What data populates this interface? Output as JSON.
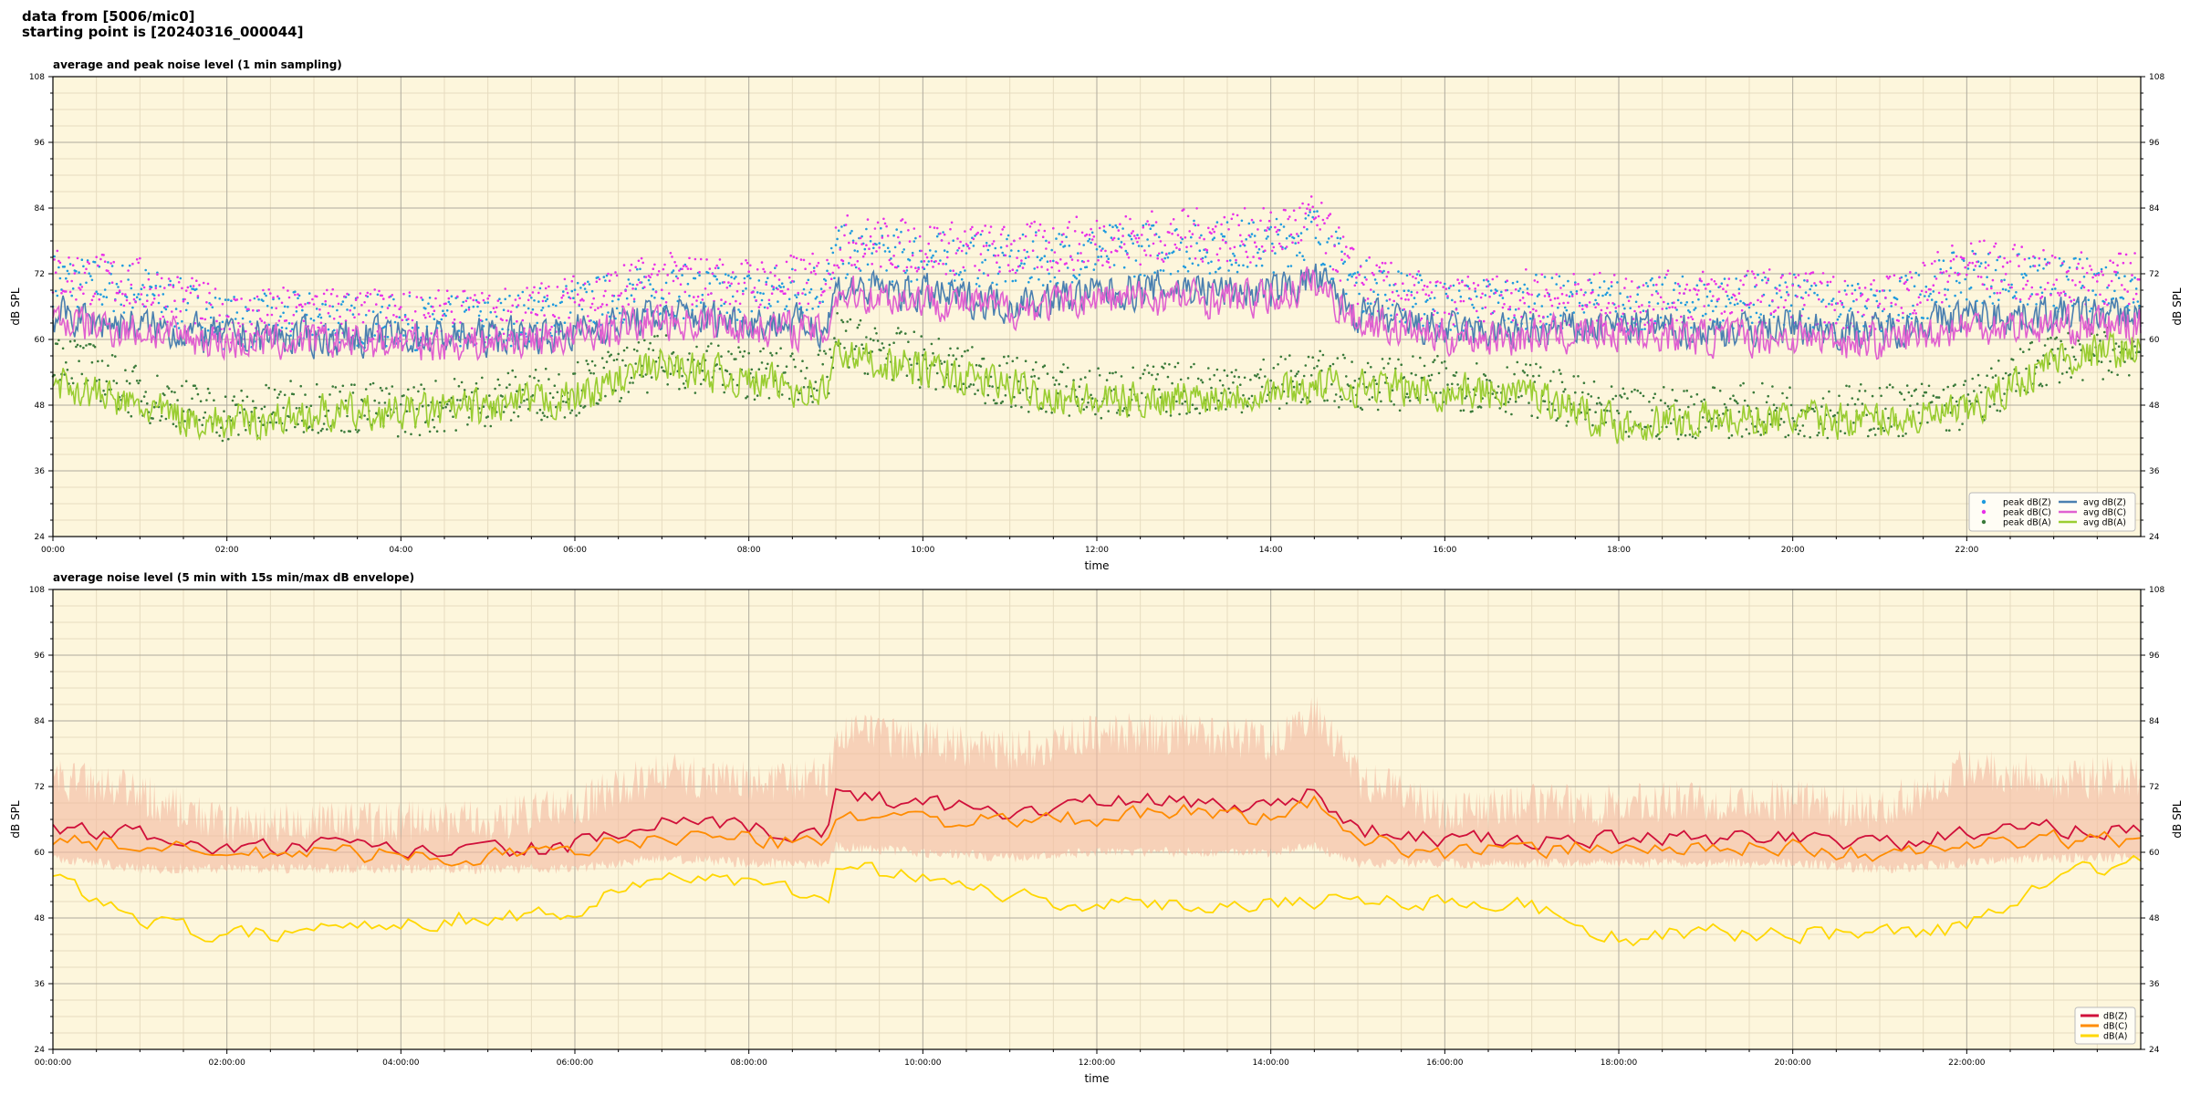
{
  "header": {
    "line1": "data from [5006/mic0]",
    "line2": "starting point is [20240316_000044]"
  },
  "chart_data": [
    {
      "type": "line",
      "title": "average and peak noise level (1 min sampling)",
      "xlabel": "time",
      "ylabel": "dB SPL",
      "ylim": [
        24,
        108
      ],
      "yticks": [
        24,
        36,
        48,
        60,
        72,
        84,
        96,
        108
      ],
      "xlim_hours": [
        0,
        24
      ],
      "xtick_labels": [
        "00:00",
        "02:00",
        "04:00",
        "06:00",
        "08:00",
        "10:00",
        "12:00",
        "14:00",
        "16:00",
        "18:00",
        "20:00",
        "22:00"
      ],
      "grid": true,
      "legend_position": "bottom-right",
      "background": "#fdf6dc",
      "x_hours": [
        0,
        1,
        2,
        3,
        4,
        5,
        6,
        7,
        8,
        8.9,
        9,
        10,
        11,
        12,
        13,
        14,
        14.5,
        15,
        16,
        17,
        18,
        19,
        20,
        21,
        22,
        23,
        24
      ],
      "series": [
        {
          "name": "peak dB(Z)",
          "kind": "points",
          "color": "#1f9bde",
          "values": [
            71,
            69,
            63,
            64,
            63,
            63,
            66,
            69,
            68,
            70,
            76,
            75,
            74,
            76,
            77,
            77,
            80,
            70,
            66,
            67,
            66,
            67,
            67,
            65,
            72,
            70,
            70
          ]
        },
        {
          "name": "peak dB(C)",
          "kind": "points",
          "color": "#e830e8",
          "values": [
            72,
            70,
            64,
            65,
            64,
            64,
            67,
            71,
            70,
            71,
            78,
            77,
            76,
            78,
            79,
            79,
            82,
            71,
            66,
            68,
            67,
            68,
            68,
            66,
            74,
            71,
            71
          ]
        },
        {
          "name": "peak dB(A)",
          "kind": "points",
          "color": "#3a7a3a",
          "values": [
            58,
            50,
            46,
            48,
            47,
            49,
            51,
            56,
            54,
            53,
            60,
            56,
            52,
            50,
            51,
            52,
            53,
            52,
            52,
            51,
            46,
            47,
            47,
            47,
            48,
            57,
            58
          ]
        },
        {
          "name": "avg dB(Z)",
          "kind": "line",
          "color": "#4a7fb0",
          "values": [
            64,
            62,
            60,
            60,
            60,
            60,
            61,
            64,
            63,
            62,
            69,
            68,
            66,
            68,
            69,
            68,
            71,
            64,
            61,
            61,
            62,
            61,
            62,
            61,
            64,
            64,
            64
          ]
        },
        {
          "name": "avg dB(C)",
          "kind": "line",
          "color": "#e060d0",
          "values": [
            63,
            61,
            59,
            59,
            59,
            59,
            60,
            63,
            62,
            61,
            68,
            67,
            65,
            67,
            67,
            67,
            70,
            63,
            60,
            60,
            61,
            60,
            60,
            59,
            62,
            62,
            62
          ]
        },
        {
          "name": "avg dB(A)",
          "kind": "line",
          "color": "#9acd32",
          "values": [
            52,
            47,
            44,
            46,
            46,
            47,
            49,
            55,
            52,
            50,
            57,
            54,
            51,
            48,
            49,
            50,
            51,
            51,
            50,
            50,
            44,
            45,
            45,
            45,
            46,
            56,
            58
          ]
        }
      ]
    },
    {
      "type": "line",
      "title": "average noise level (5 min with 15s min/max dB envelope)",
      "xlabel": "time",
      "ylabel": "dB SPL",
      "ylim": [
        24,
        108
      ],
      "yticks": [
        24,
        36,
        48,
        60,
        72,
        84,
        96,
        108
      ],
      "xlim_hours": [
        0,
        24
      ],
      "xtick_labels": [
        "00:00:00",
        "02:00:00",
        "04:00:00",
        "06:00:00",
        "08:00:00",
        "10:00:00",
        "12:00:00",
        "14:00:00",
        "16:00:00",
        "18:00:00",
        "20:00:00",
        "22:00:00"
      ],
      "grid": true,
      "legend_position": "bottom-right",
      "background": "#fdf6dc",
      "x_hours": [
        0,
        1,
        2,
        3,
        4,
        5,
        6,
        7,
        8,
        8.9,
        9,
        10,
        11,
        12,
        13,
        14,
        14.5,
        15,
        16,
        17,
        18,
        19,
        20,
        21,
        22,
        23,
        24
      ],
      "envelope": {
        "color": "#f4b9a0",
        "min": [
          60,
          58,
          58,
          58,
          58,
          58,
          58,
          60,
          59,
          59,
          62,
          61,
          60,
          61,
          61,
          61,
          62,
          59,
          59,
          59,
          59,
          59,
          59,
          58,
          59,
          60,
          60
        ],
        "max": [
          72,
          69,
          63,
          64,
          64,
          64,
          67,
          73,
          71,
          72,
          80,
          79,
          77,
          80,
          80,
          79,
          84,
          72,
          66,
          67,
          67,
          68,
          68,
          66,
          74,
          72,
          72
        ]
      },
      "series": [
        {
          "name": "dB(Z)",
          "kind": "line",
          "color": "#d0103a",
          "values": [
            64,
            63,
            60,
            61,
            60,
            60,
            61,
            65,
            64,
            63,
            70,
            69,
            67,
            69,
            69,
            68,
            71,
            64,
            62,
            62,
            62,
            62,
            63,
            61,
            63,
            64,
            64
          ]
        },
        {
          "name": "dB(C)",
          "kind": "line",
          "color": "#ff8c00",
          "values": [
            62,
            61,
            59,
            60,
            59,
            59,
            60,
            63,
            62,
            61,
            67,
            66,
            65,
            66,
            67,
            66,
            69,
            62,
            60,
            60,
            61,
            60,
            61,
            59,
            61,
            62,
            62
          ]
        },
        {
          "name": "dB(A)",
          "kind": "line",
          "color": "#ffd700",
          "values": [
            55,
            48,
            44,
            46,
            47,
            48,
            49,
            56,
            54,
            51,
            57,
            56,
            52,
            50,
            50,
            51,
            51,
            51,
            51,
            50,
            44,
            45,
            45,
            45,
            46,
            56,
            58
          ]
        }
      ]
    }
  ]
}
